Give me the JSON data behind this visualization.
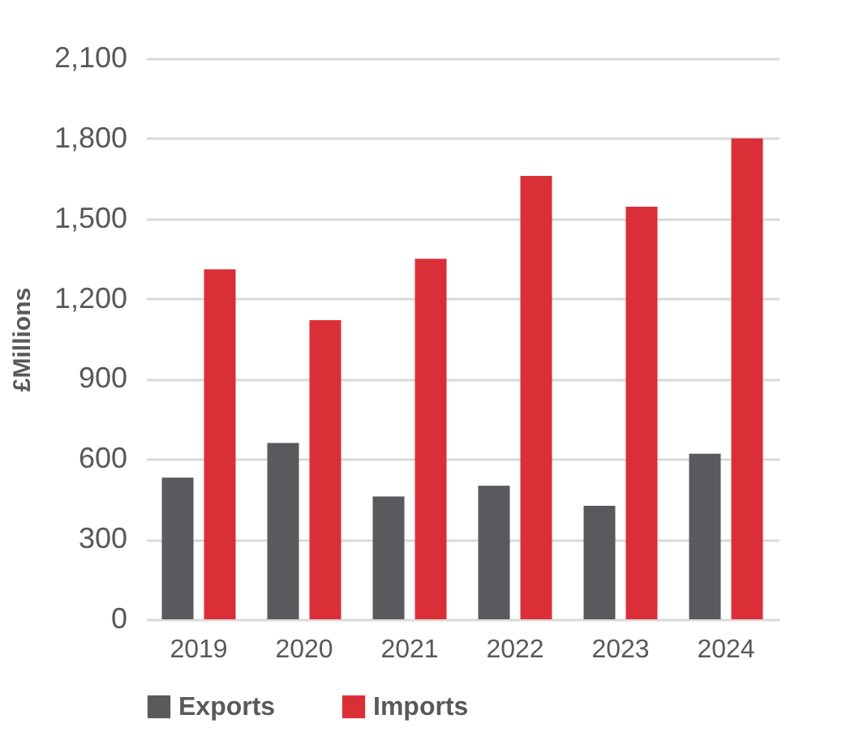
{
  "chart_data": {
    "type": "bar",
    "ylabel": "£Millions",
    "categories": [
      "2019",
      "2020",
      "2021",
      "2022",
      "2023",
      "2024"
    ],
    "series": [
      {
        "name": "Exports",
        "color": "#595a5e",
        "values": [
          530,
          660,
          460,
          500,
          425,
          620
        ]
      },
      {
        "name": "Imports",
        "color": "#db2f37",
        "values": [
          1310,
          1120,
          1350,
          1660,
          1545,
          1800
        ]
      }
    ],
    "ylim": [
      0,
      2100
    ],
    "yticks": [
      {
        "value": 0,
        "label": "0"
      },
      {
        "value": 300,
        "label": "300"
      },
      {
        "value": 600,
        "label": "600"
      },
      {
        "value": 900,
        "label": "900"
      },
      {
        "value": 1200,
        "label": "1,200"
      },
      {
        "value": 1500,
        "label": "1,500"
      },
      {
        "value": 1800,
        "label": "1,800"
      },
      {
        "value": 2100,
        "label": "2,100"
      }
    ],
    "grid": "y",
    "legend": "bottom"
  }
}
